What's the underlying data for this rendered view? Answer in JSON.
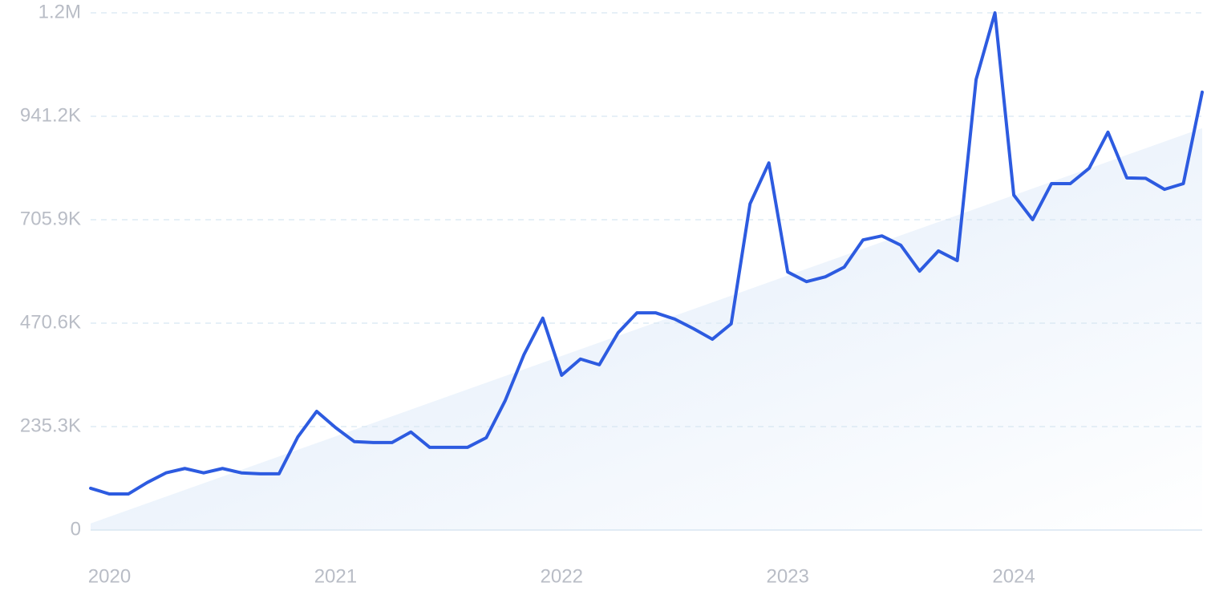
{
  "chart_data": {
    "type": "line",
    "categories": [
      null,
      "2020",
      null,
      null,
      null,
      null,
      null,
      null,
      null,
      null,
      null,
      null,
      null,
      "2021",
      null,
      null,
      null,
      null,
      null,
      null,
      null,
      null,
      null,
      null,
      null,
      "2022",
      null,
      null,
      null,
      null,
      null,
      null,
      null,
      null,
      null,
      null,
      null,
      "2023",
      null,
      null,
      null,
      null,
      null,
      null,
      null,
      null,
      null,
      null,
      null,
      "2024",
      null,
      null,
      null,
      null,
      null,
      null,
      null,
      null,
      null,
      null
    ],
    "series": [
      {
        "color": "#2d5be0",
        "values": [
          95000,
          82000,
          82000,
          108000,
          130000,
          140000,
          130000,
          140000,
          130000,
          128000,
          128000,
          212000,
          270000,
          233000,
          201000,
          199000,
          199000,
          223000,
          188000,
          188000,
          188000,
          210000,
          294000,
          399000,
          482000,
          352000,
          389000,
          376000,
          449000,
          494000,
          494000,
          480000,
          458000,
          434000,
          469000,
          742000,
          835000,
          587000,
          565000,
          576000,
          598000,
          660000,
          669000,
          648000,
          589000,
          635000,
          613000,
          1025000,
          1176500,
          762000,
          706000,
          788000,
          788000,
          823000,
          905000,
          801000,
          800000,
          775000,
          788000,
          996000
        ]
      }
    ],
    "trend": [
      15000,
      914000
    ],
    "trend_color": "#dce9f9",
    "ylim": [
      0,
      1176500
    ],
    "yticks": [
      0,
      {
        "value": 235300,
        "label": "235.3K"
      },
      {
        "value": 470600,
        "label": "470.6K"
      },
      {
        "value": 705900,
        "label": "705.9K"
      },
      {
        "value": 941200,
        "label": "941.2K"
      },
      {
        "value": 1176500,
        "label": "1.2M"
      }
    ],
    "grid": true
  }
}
